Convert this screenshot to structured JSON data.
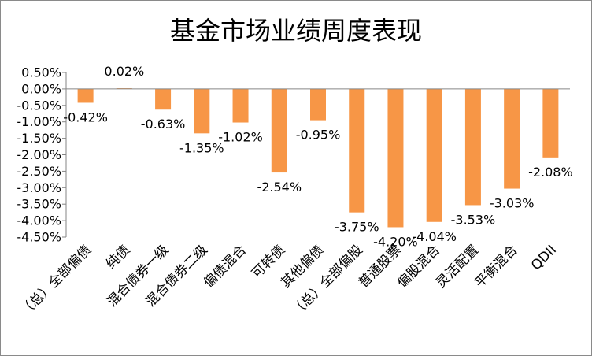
{
  "chart_data": {
    "type": "bar",
    "title": "基金市场业绩周度表现",
    "categories": [
      "（总）全部偏债",
      "纯债",
      "混合债券一级",
      "混合债券二级",
      "偏债混合",
      "可转债",
      "其他偏债",
      "（总）全部偏股",
      "普通股票",
      "偏股混合",
      "灵活配置",
      "平衡混合",
      "QDII"
    ],
    "values": [
      -0.42,
      0.02,
      -0.63,
      -1.35,
      -1.02,
      -2.54,
      -0.95,
      -3.75,
      -4.2,
      -4.04,
      -3.53,
      -3.03,
      -2.08
    ],
    "data_labels": [
      "-0.42%",
      "0.02%",
      "-0.63%",
      "-1.35%",
      "-1.02%",
      "-2.54%",
      "-0.95%",
      "-3.75%",
      "-4.20%",
      "-4.04%",
      "-3.53%",
      "-3.03%",
      "-2.08%"
    ],
    "ylim": [
      -4.5,
      0.5
    ],
    "y_ticks": [
      "0.50%",
      "0.00%",
      "-0.50%",
      "-1.00%",
      "-1.50%",
      "-2.00%",
      "-2.50%",
      "-3.00%",
      "-3.50%",
      "-4.00%",
      "-4.50%"
    ],
    "xlabel": "",
    "ylabel": "",
    "grid": false,
    "legend": "none",
    "bar_color": "#f79646"
  }
}
